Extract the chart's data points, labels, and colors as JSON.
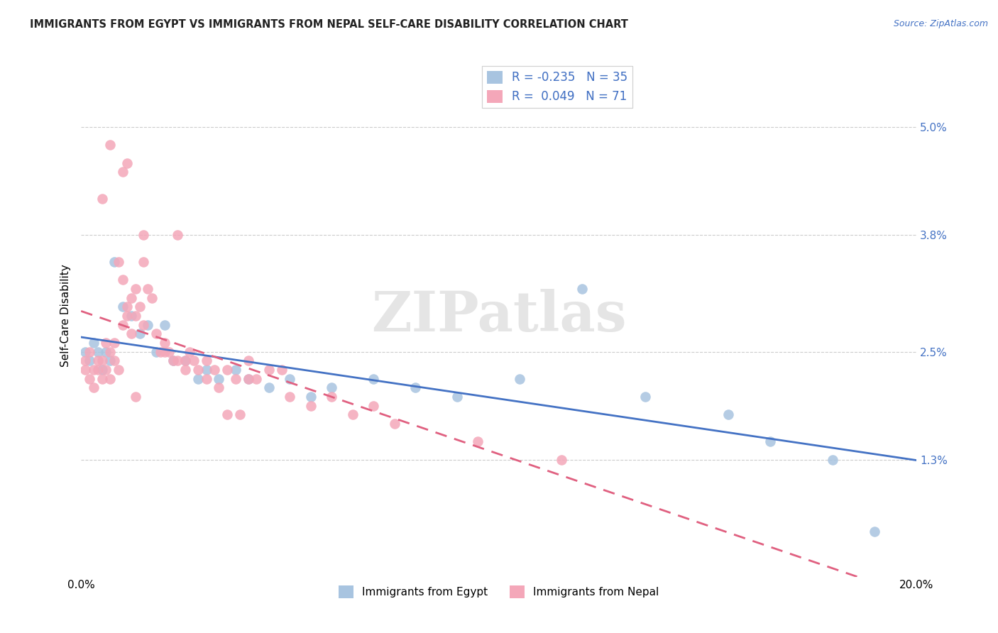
{
  "title": "IMMIGRANTS FROM EGYPT VS IMMIGRANTS FROM NEPAL SELF-CARE DISABILITY CORRELATION CHART",
  "source": "Source: ZipAtlas.com",
  "ylabel": "Self-Care Disability",
  "ytick_values": [
    5.0,
    3.8,
    2.5,
    1.3
  ],
  "xlim": [
    0.0,
    20.0
  ],
  "ylim": [
    0.0,
    5.8
  ],
  "egypt_color": "#a8c4e0",
  "nepal_color": "#f4a7b9",
  "egypt_line_color": "#4472c4",
  "nepal_line_color": "#e06080",
  "legend_egypt_label": "Immigrants from Egypt",
  "legend_nepal_label": "Immigrants from Nepal",
  "egypt_R": -0.235,
  "egypt_N": 35,
  "nepal_R": 0.049,
  "nepal_N": 71,
  "egypt_x": [
    0.1,
    0.2,
    0.3,
    0.4,
    0.5,
    0.6,
    0.7,
    0.8,
    1.0,
    1.2,
    1.4,
    1.6,
    1.8,
    2.0,
    2.2,
    2.5,
    2.8,
    3.0,
    3.3,
    3.7,
    4.0,
    4.5,
    5.0,
    5.5,
    6.0,
    7.0,
    8.0,
    9.0,
    10.5,
    12.0,
    13.5,
    15.5,
    16.5,
    18.0,
    19.0
  ],
  "egypt_y": [
    2.5,
    2.4,
    2.6,
    2.5,
    2.3,
    2.5,
    2.4,
    3.5,
    3.0,
    2.9,
    2.7,
    2.8,
    2.5,
    2.8,
    2.4,
    2.4,
    2.2,
    2.3,
    2.2,
    2.3,
    2.2,
    2.1,
    2.2,
    2.0,
    2.1,
    2.2,
    2.1,
    2.0,
    2.2,
    3.2,
    2.0,
    1.8,
    1.5,
    1.3,
    0.5
  ],
  "nepal_x": [
    0.1,
    0.1,
    0.2,
    0.2,
    0.3,
    0.3,
    0.4,
    0.4,
    0.5,
    0.5,
    0.6,
    0.6,
    0.7,
    0.7,
    0.8,
    0.8,
    0.9,
    1.0,
    1.0,
    1.1,
    1.1,
    1.2,
    1.2,
    1.3,
    1.3,
    1.4,
    1.5,
    1.5,
    1.6,
    1.7,
    1.8,
    1.9,
    2.0,
    2.1,
    2.2,
    2.3,
    2.5,
    2.6,
    2.7,
    2.8,
    3.0,
    3.0,
    3.2,
    3.3,
    3.5,
    3.7,
    4.0,
    4.0,
    4.2,
    4.5,
    5.0,
    5.5,
    6.0,
    6.5,
    7.0,
    7.5,
    0.5,
    1.0,
    1.5,
    2.0,
    2.5,
    3.5,
    0.7,
    1.1,
    2.3,
    0.9,
    4.8,
    1.3,
    3.8,
    9.5,
    11.5
  ],
  "nepal_y": [
    2.3,
    2.4,
    2.2,
    2.5,
    2.3,
    2.1,
    2.4,
    2.3,
    2.2,
    2.4,
    2.6,
    2.3,
    2.5,
    2.2,
    2.4,
    2.6,
    2.3,
    3.3,
    2.8,
    3.0,
    2.9,
    3.1,
    2.7,
    3.2,
    2.9,
    3.0,
    3.5,
    2.8,
    3.2,
    3.1,
    2.7,
    2.5,
    2.6,
    2.5,
    2.4,
    2.4,
    2.4,
    2.5,
    2.4,
    2.3,
    2.4,
    2.2,
    2.3,
    2.1,
    2.3,
    2.2,
    2.4,
    2.2,
    2.2,
    2.3,
    2.0,
    1.9,
    2.0,
    1.8,
    1.9,
    1.7,
    4.2,
    4.5,
    3.8,
    2.5,
    2.3,
    1.8,
    4.8,
    4.6,
    3.8,
    3.5,
    2.3,
    2.0,
    1.8,
    1.5,
    1.3
  ]
}
